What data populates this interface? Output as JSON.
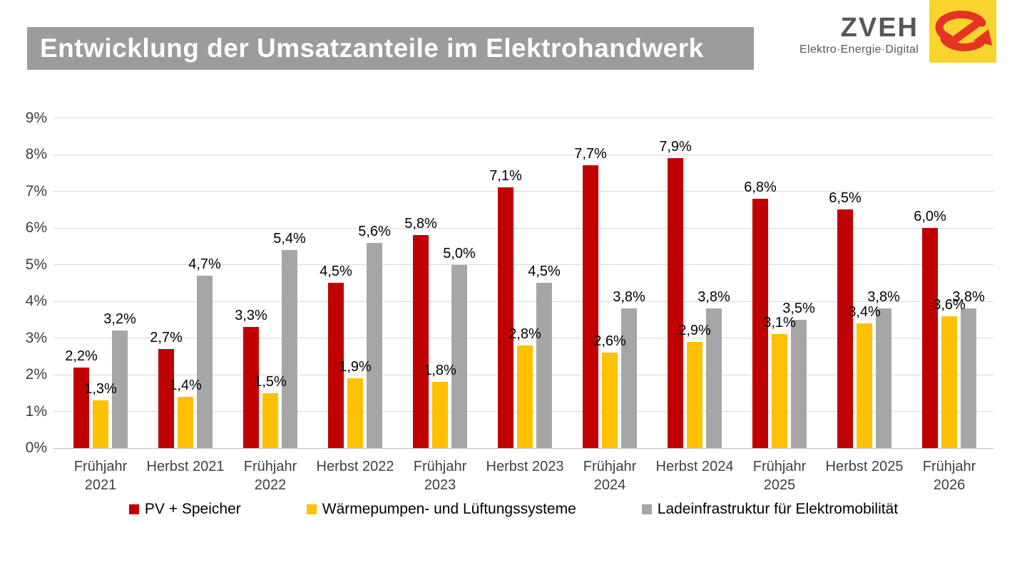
{
  "header": {
    "title": "Entwicklung der Umsatzanteile im Elektrohandwerk",
    "title_bar_color": "#9C9C9C",
    "logo": {
      "wordmark": "ZVEH",
      "tagline": "Elektro·Energie·Digital",
      "text_color": "#575756",
      "emblem_color": "#FAD42E",
      "emblem_icon_color": "#E63323",
      "emblem_icon": "zveh-e-arrow-icon"
    }
  },
  "chart_data": {
    "type": "bar",
    "title": "Entwicklung der Umsatzanteile im Elektrohandwerk",
    "categories": [
      "Frühjahr 2021",
      "Herbst 2021",
      "Frühjahr 2022",
      "Herbst 2022",
      "Frühjahr 2023",
      "Herbst 2023",
      "Frühjahr 2024",
      "Herbst 2024",
      "Frühjahr 2025",
      "Herbst 2025",
      "Frühjahr 2026"
    ],
    "series": [
      {
        "name": "PV + Speicher",
        "color": "#C00000",
        "values": [
          2.2,
          2.7,
          3.3,
          4.5,
          5.8,
          7.1,
          7.7,
          7.9,
          6.8,
          6.5,
          6.0
        ],
        "labels": [
          "2,2%",
          "2,7%",
          "3,3%",
          "4,5%",
          "5,8%",
          "7,1%",
          "7,7%",
          "7,9%",
          "6,8%",
          "6,5%",
          "6,0%"
        ]
      },
      {
        "name": "Wärmepumpen- und Lüftungssysteme",
        "color": "#FFC000",
        "values": [
          1.3,
          1.4,
          1.5,
          1.9,
          1.8,
          2.8,
          2.6,
          2.9,
          3.1,
          3.4,
          3.6
        ],
        "labels": [
          "1,3%",
          "1,4%",
          "1,5%",
          "1,9%",
          "1,8%",
          "2,8%",
          "2,6%",
          "2,9%",
          "3,1%",
          "3,4%",
          "3,6%"
        ]
      },
      {
        "name": "Ladeinfrastruktur für Elektromobilität",
        "color": "#A6A6A6",
        "values": [
          3.2,
          4.7,
          5.4,
          5.6,
          5.0,
          4.5,
          3.8,
          3.8,
          3.5,
          3.8,
          3.8
        ],
        "labels": [
          "3,2%",
          "4,7%",
          "5,4%",
          "5,6%",
          "5,0%",
          "4,5%",
          "3,8%",
          "3,8%",
          "3,5%",
          "3,8%",
          "3,8%"
        ]
      }
    ],
    "xlabel": "",
    "ylabel": "",
    "ylim": [
      0,
      9
    ],
    "yticks": [
      "0%",
      "1%",
      "2%",
      "3%",
      "4%",
      "5%",
      "6%",
      "7%",
      "8%",
      "9%"
    ],
    "grid": true,
    "legend_position": "bottom"
  }
}
